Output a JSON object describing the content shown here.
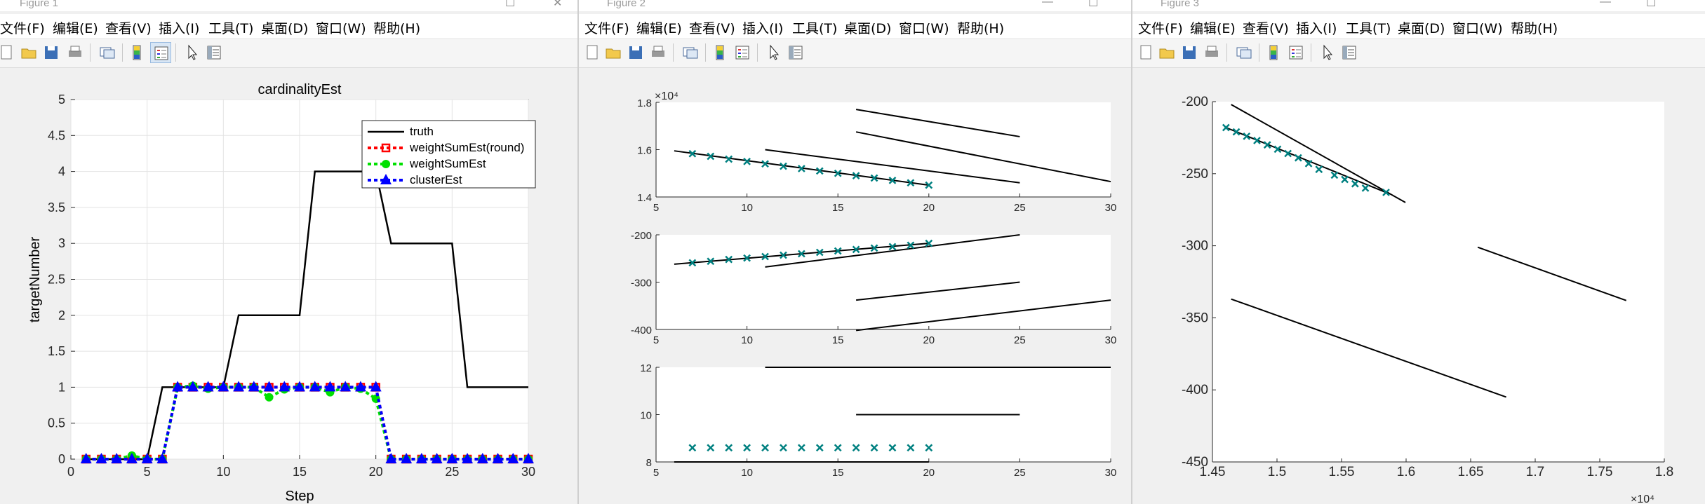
{
  "windows": [
    {
      "title": "Figure 1"
    },
    {
      "title": "Figure 2"
    },
    {
      "title": "Figure 3"
    }
  ],
  "menu": [
    "文件(F)",
    "编辑(E)",
    "查看(V)",
    "插入(I)",
    "工具(T)",
    "桌面(D)",
    "窗口(W)",
    "帮助(H)"
  ],
  "toolbar_icons": [
    "new-file-icon",
    "open-folder-icon",
    "save-icon",
    "print-icon",
    "link-figure-icon",
    "colorbar-icon",
    "legend-icon",
    "pointer-icon",
    "property-inspector-icon"
  ],
  "colors": {
    "truth": "#000000",
    "weightSumEstRound": "#ff0000",
    "weightSumEst": "#00e000",
    "clusterEst": "#0000ff",
    "marker": "#008080"
  },
  "chart_data": [
    {
      "id": "figure1",
      "type": "line",
      "title": "cardinalityEst",
      "xlabel": "Step",
      "ylabel": "targetNumber",
      "xlim": [
        0,
        30
      ],
      "ylim": [
        0,
        5
      ],
      "xticks": [
        "0",
        "5",
        "10",
        "15",
        "20",
        "25",
        "30"
      ],
      "yticks": [
        "0",
        "0.5",
        "1",
        "1.5",
        "2",
        "2.5",
        "3",
        "3.5",
        "4",
        "4.5",
        "5"
      ],
      "grid": true,
      "legend_position": "top-right",
      "x": [
        1,
        2,
        3,
        4,
        5,
        6,
        7,
        8,
        9,
        10,
        11,
        12,
        13,
        14,
        15,
        16,
        17,
        18,
        19,
        20,
        21,
        22,
        23,
        24,
        25,
        26,
        27,
        28,
        29,
        30
      ],
      "series": [
        {
          "name": "truth",
          "values": [
            0,
            0,
            0,
            0,
            0,
            1,
            1,
            1,
            1,
            1,
            2,
            2,
            2,
            2,
            2,
            4,
            4,
            4,
            4,
            4,
            3,
            3,
            3,
            3,
            3,
            1,
            1,
            1,
            1,
            1
          ]
        },
        {
          "name": "weightSumEst(round)",
          "values": [
            0,
            0,
            0,
            0,
            0,
            0,
            1,
            1,
            1,
            1,
            1,
            1,
            1,
            1,
            1,
            1,
            1,
            1,
            1,
            1,
            0,
            0,
            0,
            0,
            0,
            0,
            0,
            0,
            0,
            0
          ]
        },
        {
          "name": "weightSumEst",
          "values": [
            0,
            0,
            0,
            0.05,
            0,
            0,
            1,
            1.02,
            0.98,
            1,
            1,
            1,
            0.86,
            0.97,
            1,
            1,
            0.93,
            1,
            0.98,
            0.84,
            0,
            0,
            0,
            0,
            0,
            0,
            0,
            0,
            0,
            0
          ]
        },
        {
          "name": "clusterEst",
          "values": [
            0,
            0,
            0,
            0,
            0,
            0,
            1,
            1,
            1,
            1,
            1,
            1,
            1,
            1,
            1,
            1,
            1,
            1,
            1,
            1,
            0,
            0,
            0,
            0,
            0,
            0,
            0,
            0,
            0,
            0
          ]
        }
      ]
    },
    {
      "id": "figure2-top",
      "type": "line",
      "multiplier": "×10⁴",
      "xlim": [
        5,
        30
      ],
      "ylim": [
        1.4,
        1.8
      ],
      "xticks": [
        "5",
        "10",
        "15",
        "20",
        "25",
        "30"
      ],
      "yticks": [
        "1.4",
        "1.6",
        "1.8"
      ],
      "lines": [
        [
          [
            6,
            1.595
          ],
          [
            20,
            1.45
          ]
        ],
        [
          [
            11,
            1.6
          ],
          [
            25,
            1.46
          ]
        ],
        [
          [
            16,
            1.675
          ],
          [
            30,
            1.465
          ]
        ],
        [
          [
            16,
            1.77
          ],
          [
            25,
            1.655
          ]
        ]
      ],
      "markers": [
        [
          7,
          1.583
        ],
        [
          8,
          1.572
        ],
        [
          9,
          1.56
        ],
        [
          10,
          1.55
        ],
        [
          11,
          1.54
        ],
        [
          12,
          1.53
        ],
        [
          13,
          1.52
        ],
        [
          14,
          1.51
        ],
        [
          15,
          1.5
        ],
        [
          16,
          1.49
        ],
        [
          17,
          1.48
        ],
        [
          18,
          1.47
        ],
        [
          19,
          1.46
        ],
        [
          20,
          1.45
        ]
      ]
    },
    {
      "id": "figure2-middle",
      "type": "line",
      "xlim": [
        5,
        30
      ],
      "ylim": [
        -400,
        -200
      ],
      "xticks": [
        "5",
        "10",
        "15",
        "20",
        "25",
        "30"
      ],
      "yticks": [
        "-400",
        "-300",
        "-200"
      ],
      "lines": [
        [
          [
            6,
            -262
          ],
          [
            20,
            -218
          ]
        ],
        [
          [
            11,
            -268
          ],
          [
            25,
            -200
          ]
        ],
        [
          [
            16,
            -338
          ],
          [
            25,
            -300
          ]
        ],
        [
          [
            16,
            -402
          ],
          [
            30,
            -338
          ]
        ]
      ],
      "markers": [
        [
          7,
          -259
        ],
        [
          8,
          -256
        ],
        [
          9,
          -252
        ],
        [
          10,
          -249
        ],
        [
          11,
          -246
        ],
        [
          12,
          -243
        ],
        [
          13,
          -240
        ],
        [
          14,
          -237
        ],
        [
          15,
          -234
        ],
        [
          16,
          -231
        ],
        [
          17,
          -228
        ],
        [
          18,
          -225
        ],
        [
          19,
          -222
        ],
        [
          20,
          -218
        ]
      ]
    },
    {
      "id": "figure2-bottom",
      "type": "line",
      "xlim": [
        5,
        30
      ],
      "ylim": [
        8,
        12
      ],
      "xticks": [
        "5",
        "10",
        "15",
        "20",
        "25",
        "30"
      ],
      "yticks": [
        "8",
        "10",
        "12"
      ],
      "lines": [
        [
          [
            6,
            8
          ],
          [
            20,
            8
          ]
        ],
        [
          [
            11,
            12
          ],
          [
            30,
            12
          ]
        ],
        [
          [
            16,
            10
          ],
          [
            25,
            10
          ]
        ]
      ],
      "markers": [
        [
          7,
          8.6
        ],
        [
          8,
          8.6
        ],
        [
          9,
          8.6
        ],
        [
          10,
          8.6
        ],
        [
          11,
          8.6
        ],
        [
          12,
          8.6
        ],
        [
          13,
          8.6
        ],
        [
          14,
          8.6
        ],
        [
          15,
          8.6
        ],
        [
          16,
          8.6
        ],
        [
          17,
          8.6
        ],
        [
          18,
          8.6
        ],
        [
          19,
          8.6
        ],
        [
          20,
          8.6
        ]
      ]
    },
    {
      "id": "figure3",
      "type": "line",
      "multiplier": "×10⁴",
      "xlim": [
        1.45,
        1.8
      ],
      "ylim": [
        -450,
        -200
      ],
      "xticks": [
        "1.45",
        "1.5",
        "1.55",
        "1.6",
        "1.65",
        "1.7",
        "1.75",
        "1.8"
      ],
      "yticks": [
        "-450",
        "-400",
        "-350",
        "-300",
        "-250",
        "-200"
      ],
      "lines": [
        [
          [
            1.4605,
            -218
          ],
          [
            1.5845,
            -263
          ]
        ],
        [
          [
            1.4645,
            -202
          ],
          [
            1.5995,
            -270
          ]
        ],
        [
          [
            1.4645,
            -337
          ],
          [
            1.6775,
            -405
          ]
        ],
        [
          [
            1.6555,
            -301
          ],
          [
            1.7705,
            -338
          ]
        ]
      ],
      "markers": [
        [
          1.4605,
          -218
        ],
        [
          1.4685,
          -221
        ],
        [
          1.4765,
          -224
        ],
        [
          1.4845,
          -227
        ],
        [
          1.4925,
          -230
        ],
        [
          1.5005,
          -233
        ],
        [
          1.5085,
          -236
        ],
        [
          1.5165,
          -239
        ],
        [
          1.5245,
          -243
        ],
        [
          1.5325,
          -247
        ],
        [
          1.5445,
          -251
        ],
        [
          1.5525,
          -254
        ],
        [
          1.5605,
          -257
        ],
        [
          1.5685,
          -260
        ],
        [
          1.5845,
          -263
        ]
      ]
    }
  ]
}
